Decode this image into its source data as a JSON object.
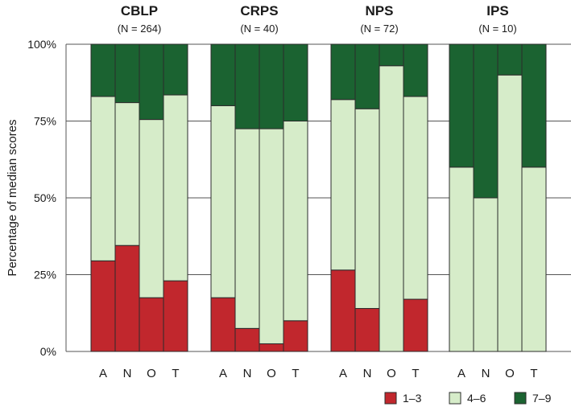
{
  "chart_data": {
    "type": "bar",
    "stacked": true,
    "ylabel": "Percentage of median scores",
    "ylim": [
      0,
      100
    ],
    "yticks": [
      "0%",
      "25%",
      "50%",
      "75%",
      "100%"
    ],
    "categories": [
      "A",
      "N",
      "O",
      "T"
    ],
    "legend": {
      "placement": "bottom-right",
      "entries": [
        "1–3",
        "4–6",
        "7–9"
      ]
    },
    "series_colors": [
      "#c1272d",
      "#d6ecc9",
      "#1b6331"
    ],
    "groups": [
      {
        "title": "CBLP",
        "subtitle": "(N = 264)",
        "series": [
          {
            "name": "1–3",
            "values": [
              29.5,
              34.5,
              17.5,
              23
            ]
          },
          {
            "name": "4–6",
            "values": [
              53.5,
              46.5,
              58,
              60.5
            ]
          },
          {
            "name": "7–9",
            "values": [
              17,
              19,
              24.5,
              16.5
            ]
          }
        ]
      },
      {
        "title": "CRPS",
        "subtitle": "(N = 40)",
        "series": [
          {
            "name": "1–3",
            "values": [
              17.5,
              7.5,
              2.5,
              10
            ]
          },
          {
            "name": "4–6",
            "values": [
              62.5,
              65,
              70,
              65
            ]
          },
          {
            "name": "7–9",
            "values": [
              20,
              27.5,
              27.5,
              25
            ]
          }
        ]
      },
      {
        "title": "NPS",
        "subtitle": "(N = 72)",
        "series": [
          {
            "name": "1–3",
            "values": [
              26.5,
              14,
              0,
              17
            ]
          },
          {
            "name": "4–6",
            "values": [
              55.5,
              65,
              93,
              66
            ]
          },
          {
            "name": "7–9",
            "values": [
              18,
              21,
              7,
              17
            ]
          }
        ]
      },
      {
        "title": "IPS",
        "subtitle": "(N = 10)",
        "series": [
          {
            "name": "1–3",
            "values": [
              0,
              0,
              0,
              0
            ]
          },
          {
            "name": "4–6",
            "values": [
              60,
              50,
              90,
              60
            ]
          },
          {
            "name": "7–9",
            "values": [
              40,
              50,
              10,
              40
            ]
          }
        ]
      }
    ]
  }
}
